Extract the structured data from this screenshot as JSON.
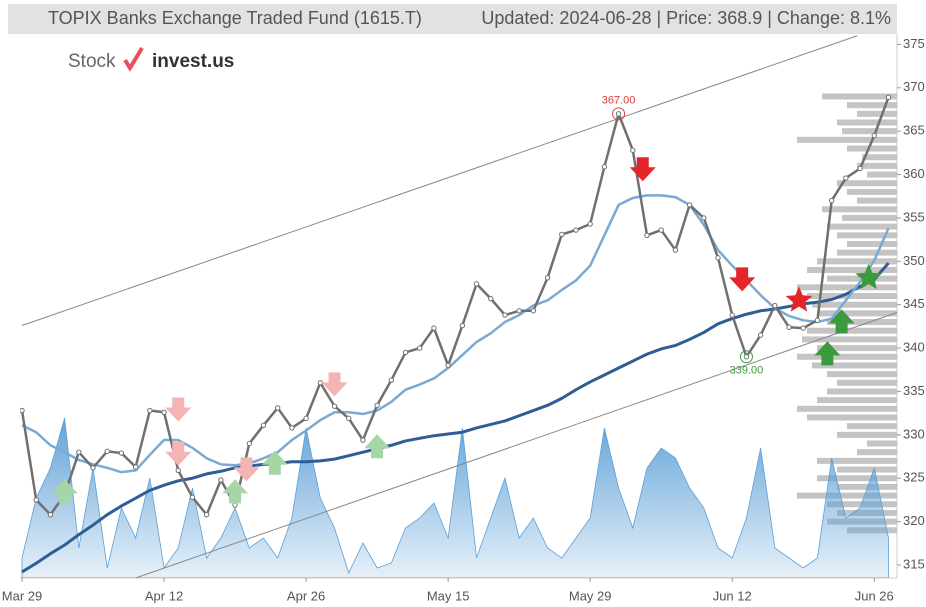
{
  "chart_data": {
    "type": "line",
    "title": "TOPIX Banks Exchange Traded Fund (1615.T)",
    "subtitle": "Updated: 2024-06-28 | Price: 368.9 | Change: 8.1%",
    "logo": {
      "left": "Stock",
      "right": "invest.us"
    },
    "categories": [
      "Mar 29",
      null,
      null,
      null,
      null,
      null,
      null,
      null,
      null,
      null,
      "Apr 12",
      null,
      null,
      null,
      null,
      null,
      null,
      null,
      null,
      null,
      "Apr 26",
      null,
      null,
      null,
      null,
      null,
      null,
      null,
      null,
      null,
      "May 15",
      null,
      null,
      null,
      null,
      null,
      null,
      null,
      null,
      null,
      "May 29",
      null,
      null,
      null,
      null,
      null,
      null,
      null,
      null,
      null,
      "Jun 12",
      null,
      null,
      null,
      null,
      null,
      null,
      null,
      null,
      null,
      "Jun 26",
      null
    ],
    "xlim": [
      0,
      61.6
    ],
    "ylim": [
      313.5,
      376.2
    ],
    "yticks": [
      315,
      320,
      325,
      330,
      335,
      340,
      345,
      350,
      355,
      360,
      365,
      370,
      375
    ],
    "series": [
      {
        "color": "#707070",
        "values": [
          332.8,
          322.5,
          320.8,
          323.1,
          328.0,
          326.2,
          328.1,
          327.9,
          326.3,
          332.8,
          332.6,
          325.9,
          322.8,
          320.8,
          324.8,
          321.9,
          329.0,
          331.1,
          333.1,
          330.8,
          331.9,
          336.0,
          333.3,
          331.9,
          329.4,
          333.4,
          336.3,
          339.5,
          340.0,
          342.3,
          338.0,
          342.6,
          347.4,
          345.7,
          343.8,
          344.3,
          344.3,
          348.1,
          353.1,
          353.6,
          354.3,
          360.9,
          367.0,
          362.8,
          353.0,
          353.6,
          351.3,
          356.5,
          355.0,
          350.4,
          343.8,
          339.0,
          341.5,
          344.9,
          342.4,
          342.3,
          343.2,
          357.0,
          359.6,
          360.7,
          364.5,
          368.9
        ]
      },
      {
        "color": "#7aaad4",
        "values": [
          331.1,
          330.3,
          328.8,
          328.0,
          327.1,
          326.6,
          326.2,
          325.7,
          325.9,
          327.7,
          329.4,
          329.4,
          328.5,
          327.3,
          326.6,
          326.5,
          326.7,
          327.3,
          328.0,
          329.4,
          330.5,
          331.7,
          332.6,
          332.6,
          332.4,
          332.8,
          333.8,
          335.2,
          335.8,
          336.5,
          337.7,
          339.2,
          340.7,
          341.7,
          343.0,
          343.8,
          344.9,
          345.5,
          346.7,
          347.8,
          349.5,
          353.0,
          356.5,
          357.3,
          357.6,
          357.6,
          357.4,
          356.5,
          354.2,
          351.3,
          349.5,
          347.8,
          346.1,
          344.6,
          343.7,
          343.2,
          343.0,
          343.4,
          345.5,
          347.6,
          350.1,
          353.8
        ]
      },
      {
        "color": "#2e5e95",
        "values": [
          314.2,
          315.2,
          316.3,
          317.3,
          318.5,
          319.6,
          320.8,
          321.8,
          322.7,
          323.6,
          324.2,
          324.7,
          325.0,
          325.5,
          325.8,
          326.2,
          326.4,
          326.6,
          326.7,
          326.9,
          326.9,
          327.0,
          327.2,
          327.6,
          328.0,
          328.4,
          328.8,
          329.3,
          329.6,
          329.9,
          330.1,
          330.3,
          330.8,
          331.2,
          331.6,
          332.2,
          332.8,
          333.4,
          334.2,
          335.2,
          336.1,
          336.9,
          337.7,
          338.5,
          339.3,
          339.9,
          340.3,
          341.0,
          341.8,
          342.8,
          343.4,
          343.9,
          344.3,
          344.5,
          344.8,
          345.1,
          345.3,
          345.6,
          346.2,
          347.1,
          347.9,
          349.8
        ]
      }
    ],
    "volume": {
      "color": "#5b9fd6",
      "lim": [
        0,
        544
      ],
      "values": [
        20,
        80,
        110,
        160,
        30,
        110,
        10,
        70,
        40,
        100,
        10,
        30,
        90,
        20,
        40,
        70,
        30,
        40,
        20,
        60,
        150,
        80,
        50,
        5,
        35,
        10,
        15,
        50,
        60,
        75,
        40,
        150,
        20,
        60,
        100,
        40,
        60,
        30,
        20,
        40,
        60,
        150,
        90,
        50,
        110,
        130,
        120,
        90,
        70,
        30,
        20,
        60,
        130,
        30,
        20,
        10,
        20,
        120,
        60,
        70,
        110,
        40
      ]
    },
    "price_volume": {
      "color": "#c4c4c4",
      "lim": [
        0,
        875
      ],
      "levels": [
        369,
        368,
        367,
        366,
        365,
        364,
        363,
        362,
        361,
        360,
        359,
        358,
        357,
        356,
        355,
        354,
        353,
        352,
        351,
        350,
        349,
        348,
        347,
        346,
        345,
        344,
        343,
        342,
        341,
        340,
        339,
        338,
        337,
        336,
        335,
        334,
        333,
        332,
        331,
        330,
        329,
        328,
        327,
        326,
        325,
        324,
        323,
        322,
        321,
        320,
        319
      ],
      "values": [
        75,
        50,
        40,
        60,
        55,
        100,
        50,
        35,
        40,
        30,
        60,
        50,
        40,
        75,
        55,
        70,
        60,
        50,
        60,
        80,
        90,
        70,
        100,
        90,
        85,
        80,
        70,
        90,
        95,
        80,
        100,
        85,
        70,
        60,
        70,
        80,
        100,
        90,
        50,
        60,
        30,
        40,
        80,
        60,
        80,
        60,
        100,
        70,
        60,
        70,
        50
      ]
    },
    "trend_lines": [
      {
        "color": "#888888",
        "x": [
          0,
          58.8
        ],
        "values": [
          342.6,
          376.0
        ]
      },
      {
        "color": "#888888",
        "x": [
          8,
          61.6
        ],
        "values": [
          313.5,
          344.1
        ]
      }
    ],
    "signals": [
      {
        "x": 11,
        "value": 332.8,
        "shape": "down",
        "color": "#f4b4b4"
      },
      {
        "x": 11,
        "value": 327.7,
        "shape": "down",
        "color": "#f4b4b4"
      },
      {
        "x": 15.8,
        "value": 325.9,
        "shape": "down",
        "color": "#f4b4b4"
      },
      {
        "x": 22,
        "value": 335.7,
        "shape": "down",
        "color": "#f4b4b4"
      },
      {
        "x": 43.7,
        "value": 360.5,
        "shape": "down",
        "color": "#e4252a"
      },
      {
        "x": 50.7,
        "value": 347.8,
        "shape": "down",
        "color": "#e4252a"
      },
      {
        "x": 54.7,
        "value": 345.5,
        "shape": "star",
        "color": "#e4252a"
      },
      {
        "x": 3,
        "value": 323.6,
        "shape": "up",
        "color": "#a6d6a6"
      },
      {
        "x": 15,
        "value": 323.6,
        "shape": "up",
        "color": "#a6d6a6"
      },
      {
        "x": 17.8,
        "value": 326.9,
        "shape": "up",
        "color": "#a6d6a6"
      },
      {
        "x": 25,
        "value": 328.8,
        "shape": "up",
        "color": "#a6d6a6"
      },
      {
        "x": 57.7,
        "value": 343.2,
        "shape": "up",
        "color": "#3b9a3b"
      },
      {
        "x": 56.7,
        "value": 339.5,
        "shape": "up",
        "color": "#3b9a3b"
      },
      {
        "x": 59.6,
        "value": 348.1,
        "shape": "star",
        "color": "#3b9a3b"
      }
    ],
    "annotations": [
      {
        "x": 42,
        "value": 367.0,
        "label": "367.00",
        "color": "#e0393b"
      },
      {
        "x": 51,
        "value": 339.0,
        "label": "339.00",
        "color": "#3b9a3b"
      }
    ]
  }
}
